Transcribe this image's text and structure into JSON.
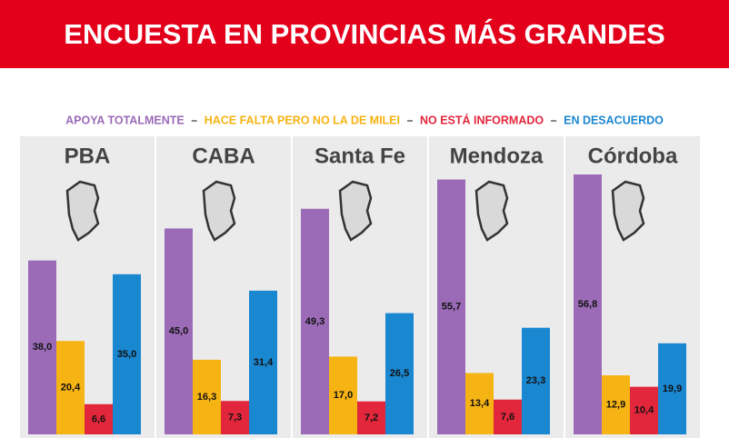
{
  "chart_data": {
    "type": "bar",
    "title": "ENCUESTA EN PROVINCIAS MÁS GRANDES",
    "categories": [
      "PBA",
      "CABA",
      "Santa Fe",
      "Mendoza",
      "Córdoba"
    ],
    "series": [
      {
        "name": "APOYA TOTALMENTE",
        "color": "#9b6bb7",
        "values": [
          38.0,
          45.0,
          49.3,
          55.7,
          56.8
        ],
        "value_labels": [
          "38,0",
          "45,0",
          "49,3",
          "55,7",
          "56,8"
        ]
      },
      {
        "name": "HACE FALTA PERO NO LA DE MILEI",
        "color": "#f6b314",
        "values": [
          20.4,
          16.3,
          17.0,
          13.4,
          12.9
        ],
        "value_labels": [
          "20,4",
          "16,3",
          "17,0",
          "13,4",
          "12,9"
        ]
      },
      {
        "name": "NO ESTÁ INFORMADO",
        "color": "#e2263b",
        "values": [
          6.6,
          7.3,
          7.2,
          7.6,
          10.4
        ],
        "value_labels": [
          "6,6",
          "7,3",
          "7,2",
          "7,6",
          "10,4"
        ]
      },
      {
        "name": "EN DESACUERDO",
        "color": "#1a87d1",
        "values": [
          35.0,
          31.4,
          26.5,
          23.3,
          19.9
        ],
        "value_labels": [
          "35,0",
          "31,4",
          "26,5",
          "23,3",
          "19,9"
        ]
      }
    ]
  }
}
